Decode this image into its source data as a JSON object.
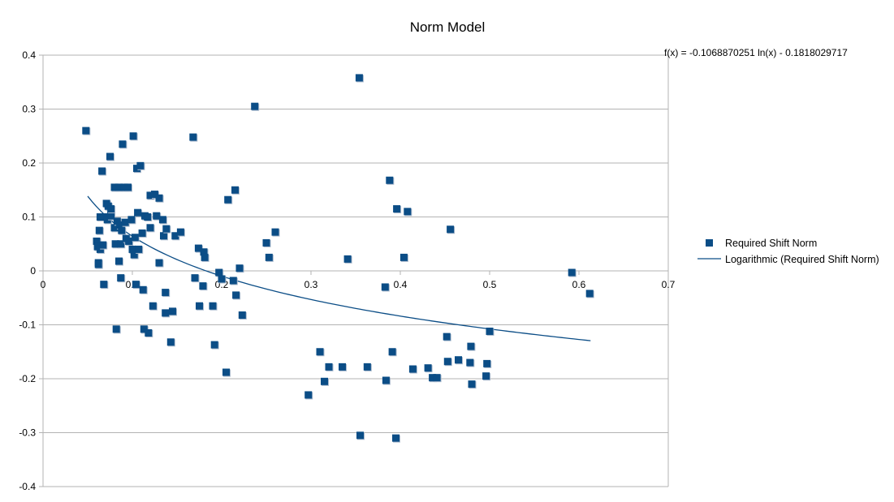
{
  "chart_data": {
    "type": "scatter",
    "title": "Norm Model",
    "xlabel": "",
    "ylabel": "",
    "xlim": [
      0,
      0.7
    ],
    "ylim": [
      -0.4,
      0.4
    ],
    "x_ticks": [
      0,
      0.1,
      0.2,
      0.3,
      0.4,
      0.5,
      0.6,
      0.7
    ],
    "x_tick_labels": [
      "0",
      "0.1",
      "0.2",
      "0.3",
      "0.4",
      "0.5",
      "0.6",
      "0.7"
    ],
    "y_ticks": [
      -0.4,
      -0.3,
      -0.2,
      -0.1,
      0,
      0.1,
      0.2,
      0.3,
      0.4
    ],
    "y_tick_labels": [
      "-0.4",
      "-0.3",
      "-0.2",
      "-0.1",
      "0",
      "0.1",
      "0.2",
      "0.3",
      "0.4"
    ],
    "grid": "horizontal",
    "legend_position": "right",
    "equation": "f(x) = -0.1068870251 ln(x) - 0.1818029717",
    "colors": {
      "marker": "#0b4d86",
      "trend": "#0b4d86",
      "grid": "#b3b3b3",
      "axis": "#b3b3b3"
    },
    "series": [
      {
        "name": "Required Shift Norm",
        "marker": "square",
        "points": [
          [
            0.048,
            0.26
          ],
          [
            0.06,
            0.055
          ],
          [
            0.061,
            0.045
          ],
          [
            0.062,
            0.015
          ],
          [
            0.062,
            0.012
          ],
          [
            0.063,
            0.075
          ],
          [
            0.064,
            0.1
          ],
          [
            0.064,
            0.04
          ],
          [
            0.066,
            0.185
          ],
          [
            0.067,
            0.048
          ],
          [
            0.068,
            -0.025
          ],
          [
            0.07,
            0.1
          ],
          [
            0.071,
            0.125
          ],
          [
            0.072,
            0.095
          ],
          [
            0.073,
            0.12
          ],
          [
            0.075,
            0.212
          ],
          [
            0.076,
            0.102
          ],
          [
            0.076,
            0.115
          ],
          [
            0.08,
            0.155
          ],
          [
            0.08,
            0.08
          ],
          [
            0.081,
            0.05
          ],
          [
            0.082,
            -0.108
          ],
          [
            0.083,
            0.092
          ],
          [
            0.085,
            0.018
          ],
          [
            0.085,
            0.155
          ],
          [
            0.086,
            0.085
          ],
          [
            0.087,
            -0.013
          ],
          [
            0.087,
            0.05
          ],
          [
            0.088,
            0.075
          ],
          [
            0.089,
            0.235
          ],
          [
            0.091,
            0.155
          ],
          [
            0.092,
            0.09
          ],
          [
            0.093,
            0.06
          ],
          [
            0.095,
            0.155
          ],
          [
            0.096,
            0.055
          ],
          [
            0.099,
            0.095
          ],
          [
            0.1,
            0.04
          ],
          [
            0.101,
            0.25
          ],
          [
            0.102,
            0.03
          ],
          [
            0.103,
            0.062
          ],
          [
            0.104,
            -0.025
          ],
          [
            0.105,
            0.19
          ],
          [
            0.106,
            0.108
          ],
          [
            0.107,
            0.04
          ],
          [
            0.109,
            0.195
          ],
          [
            0.111,
            0.07
          ],
          [
            0.112,
            -0.035
          ],
          [
            0.113,
            -0.108
          ],
          [
            0.114,
            0.102
          ],
          [
            0.117,
            0.1
          ],
          [
            0.118,
            -0.115
          ],
          [
            0.12,
            0.14
          ],
          [
            0.12,
            0.08
          ],
          [
            0.123,
            -0.065
          ],
          [
            0.125,
            0.142
          ],
          [
            0.127,
            0.102
          ],
          [
            0.13,
            0.135
          ],
          [
            0.13,
            0.015
          ],
          [
            0.134,
            0.095
          ],
          [
            0.135,
            0.065
          ],
          [
            0.137,
            -0.04
          ],
          [
            0.137,
            -0.078
          ],
          [
            0.138,
            0.078
          ],
          [
            0.143,
            -0.132
          ],
          [
            0.145,
            -0.075
          ],
          [
            0.148,
            0.065
          ],
          [
            0.154,
            0.072
          ],
          [
            0.168,
            0.248
          ],
          [
            0.17,
            -0.013
          ],
          [
            0.174,
            0.042
          ],
          [
            0.175,
            -0.065
          ],
          [
            0.179,
            -0.028
          ],
          [
            0.18,
            0.035
          ],
          [
            0.181,
            0.025
          ],
          [
            0.19,
            -0.065
          ],
          [
            0.192,
            -0.137
          ],
          [
            0.197,
            -0.003
          ],
          [
            0.2,
            -0.015
          ],
          [
            0.205,
            -0.188
          ],
          [
            0.207,
            0.132
          ],
          [
            0.213,
            -0.018
          ],
          [
            0.215,
            0.15
          ],
          [
            0.216,
            -0.045
          ],
          [
            0.22,
            0.005
          ],
          [
            0.223,
            -0.082
          ],
          [
            0.237,
            0.305
          ],
          [
            0.25,
            0.052
          ],
          [
            0.253,
            0.025
          ],
          [
            0.26,
            0.072
          ],
          [
            0.297,
            -0.23
          ],
          [
            0.31,
            -0.15
          ],
          [
            0.315,
            -0.205
          ],
          [
            0.32,
            -0.178
          ],
          [
            0.335,
            -0.178
          ],
          [
            0.341,
            0.022
          ],
          [
            0.354,
            0.358
          ],
          [
            0.355,
            -0.305
          ],
          [
            0.363,
            -0.178
          ],
          [
            0.383,
            -0.03
          ],
          [
            0.384,
            -0.203
          ],
          [
            0.388,
            0.168
          ],
          [
            0.391,
            -0.15
          ],
          [
            0.395,
            -0.31
          ],
          [
            0.396,
            0.115
          ],
          [
            0.404,
            0.025
          ],
          [
            0.408,
            0.11
          ],
          [
            0.414,
            -0.182
          ],
          [
            0.431,
            -0.18
          ],
          [
            0.436,
            -0.198
          ],
          [
            0.441,
            -0.198
          ],
          [
            0.452,
            -0.122
          ],
          [
            0.453,
            -0.168
          ],
          [
            0.456,
            0.077
          ],
          [
            0.465,
            -0.165
          ],
          [
            0.478,
            -0.17
          ],
          [
            0.479,
            -0.14
          ],
          [
            0.48,
            -0.21
          ],
          [
            0.496,
            -0.195
          ],
          [
            0.497,
            -0.172
          ],
          [
            0.5,
            -0.112
          ],
          [
            0.592,
            -0.003
          ],
          [
            0.612,
            -0.042
          ]
        ]
      },
      {
        "name": "Logarithmic (Required Shift Norm)",
        "type": "line",
        "function": "log",
        "a": -0.1068870251,
        "b": -0.1818029717,
        "x_range": [
          0.05,
          0.613
        ]
      }
    ]
  }
}
